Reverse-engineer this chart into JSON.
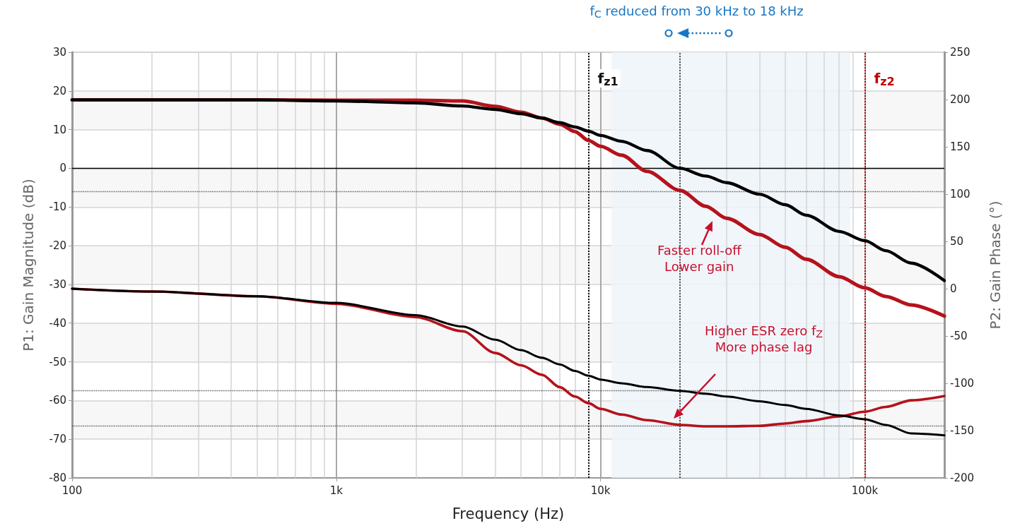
{
  "chart_data": {
    "type": "line",
    "xlabel": "Frequency (Hz)",
    "ylabel": "P1: Gain Magnitude (dB)",
    "y2label": "P2: Gain Phase (°)",
    "log": "x",
    "xlim": [
      100,
      200000
    ],
    "xticks": [
      {
        "value": 100,
        "label": "100"
      },
      {
        "value": 1000,
        "label": "1k"
      },
      {
        "value": 10000,
        "label": "10k"
      },
      {
        "value": 100000,
        "label": "100k"
      }
    ],
    "ylim": [
      -80,
      30
    ],
    "yticks": [
      -80,
      -70,
      -60,
      -50,
      -40,
      -30,
      -20,
      -10,
      0,
      10,
      20,
      30
    ],
    "y2lim": [
      -200,
      250
    ],
    "y2ticks": [
      -200,
      -150,
      -100,
      -50,
      0,
      50,
      100,
      150,
      200,
      250
    ],
    "x": [
      100,
      200,
      500,
      1000,
      2000,
      3000,
      4000,
      5000,
      6000,
      7000,
      8000,
      9000,
      10000,
      12000,
      15000,
      20000,
      25000,
      30000,
      40000,
      50000,
      60000,
      80000,
      100000,
      120000,
      150000,
      200000
    ],
    "series": [
      {
        "color": "#b5121b",
        "values": [
          17.7,
          17.7,
          17.7,
          17.6,
          17.6,
          17.4,
          16.0,
          14.5,
          13.0,
          11.4,
          9.5,
          7.2,
          5.7,
          3.4,
          -0.8,
          -5.7,
          -9.8,
          -12.9,
          -17.1,
          -20.4,
          -23.5,
          -28,
          -30.9,
          -33.1,
          -35.3,
          -38.2
        ]
      },
      {
        "color": "#000000",
        "values": [
          17.7,
          17.7,
          17.7,
          17.4,
          16.9,
          16.1,
          15.2,
          14.1,
          13.0,
          11.8,
          10.7,
          9.6,
          8.5,
          7.0,
          4.6,
          0,
          -2,
          -3.7,
          -6.7,
          -9.4,
          -12.1,
          -16.3,
          -18.7,
          -21.3,
          -24.5,
          -29
        ]
      },
      {
        "color": "#b5121b",
        "axis": "y2",
        "values": [
          0,
          -3,
          -8,
          -16,
          -30,
          -45,
          -68,
          -81,
          -91,
          -104,
          -114,
          -121,
          -127,
          -133,
          -139,
          -144,
          -145.5,
          -145.5,
          -145,
          -142.5,
          -140,
          -135,
          -130,
          -125,
          -118,
          -113.5
        ]
      },
      {
        "color": "#000000",
        "axis": "y2",
        "values": [
          0,
          -3,
          -8,
          -15,
          -28,
          -40,
          -54,
          -65,
          -73,
          -80,
          -87,
          -92,
          -96,
          -100,
          -104,
          -108,
          -111,
          -114,
          -119,
          -123,
          -127,
          -134,
          -138,
          -144,
          -153,
          -155
        ]
      }
    ],
    "ref_lines": [
      {
        "axis": "y",
        "value": 0,
        "color": "#000000",
        "line_style": "solid"
      },
      {
        "axis": "y",
        "value": -6,
        "color": "#555555",
        "line_style": "dotted"
      },
      {
        "axis": "y2",
        "value": -108,
        "color": "#555555",
        "line_style": "dotted"
      },
      {
        "axis": "y2",
        "value": -145,
        "color": "#555555",
        "line_style": "dotted"
      },
      {
        "axis": "x",
        "value": 9000,
        "label": "f$_{z1}$",
        "color": "#111111",
        "line_style": "dotted"
      },
      {
        "axis": "x",
        "value": 20000,
        "color": "#555555",
        "line_style": "dotted"
      },
      {
        "axis": "x",
        "value": 100000,
        "label": "f$_{z2}$",
        "color": "#c00000",
        "line_style": "dotted"
      }
    ],
    "bands": [
      {
        "axis": "x",
        "from": 11000,
        "to": 88000,
        "color": "#eef4fa"
      }
    ],
    "annotations": [
      "f$_{C}$ reduced from 30 kHz to 18 kHz",
      "Faster roll-off\nLower gain",
      "Higher ESR zero f$_{Z}$\nMore phase lag"
    ],
    "grid": true
  }
}
